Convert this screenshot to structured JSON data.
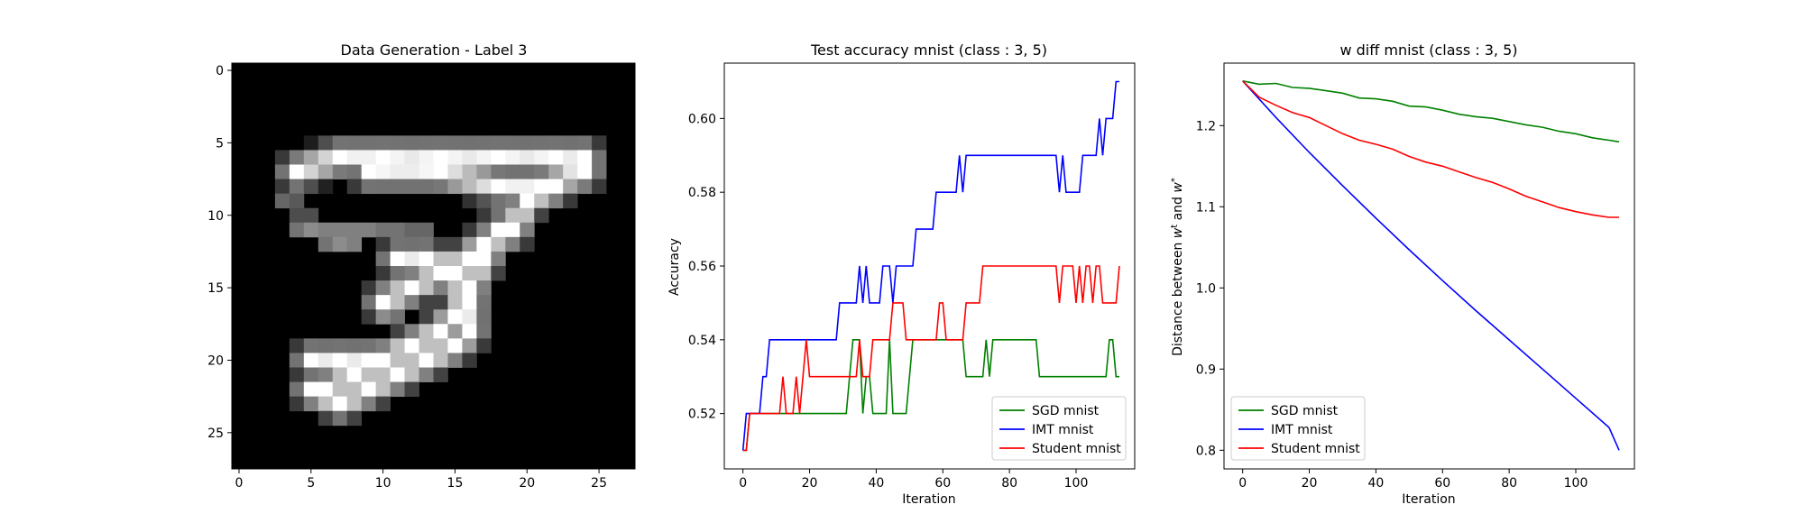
{
  "chart_data": [
    {
      "type": "heatmap",
      "title": "Data Generation - Label 3",
      "colormap": "gray",
      "background": "#000000",
      "xlim": [
        -0.5,
        27.5
      ],
      "ylim": [
        27.5,
        -0.5
      ],
      "x_ticks": [
        0,
        5,
        10,
        15,
        20,
        25
      ],
      "y_ticks": [
        0,
        5,
        10,
        15,
        20,
        25
      ],
      "pixels": [
        [
          3,
          9,
          12,
          0.4
        ],
        [
          4,
          9,
          12,
          0.35
        ],
        [
          4,
          9,
          13,
          0.25
        ],
        [
          4,
          10,
          14,
          0.25
        ],
        [
          4,
          10,
          15,
          0.3
        ],
        [
          5,
          10,
          15,
          0.3
        ],
        [
          5,
          10,
          16,
          0.2
        ],
        [
          4,
          11,
          7,
          0.3
        ],
        [
          4,
          11,
          8,
          0.45
        ],
        [
          5,
          11,
          8,
          0.55
        ],
        [
          5,
          11,
          9,
          0.5
        ],
        [
          6,
          11,
          9,
          0.5
        ],
        [
          7,
          11,
          10,
          0.5
        ],
        [
          8,
          11,
          11,
          0.5
        ],
        [
          9,
          11,
          12,
          0.5
        ],
        [
          10,
          11,
          13,
          0.45
        ],
        [
          11,
          11,
          14,
          0.45
        ],
        [
          12,
          11,
          15,
          0.4
        ],
        [
          13,
          11,
          16,
          0.4
        ],
        [
          8,
          12,
          21,
          0.5
        ],
        [
          8,
          12,
          22,
          0.4
        ],
        [
          7,
          12,
          23,
          0.5
        ],
        [
          7,
          12,
          24,
          0.55
        ],
        [
          6,
          12,
          25,
          0.45
        ],
        [
          10,
          17,
          22,
          0.55
        ],
        [
          11,
          17,
          23,
          0.45
        ]
      ],
      "strokes": [
        [
          [
            4,
            7
          ],
          [
            7,
            6
          ],
          [
            10,
            6
          ],
          [
            14,
            6
          ],
          [
            18,
            6
          ],
          [
            22,
            6
          ],
          [
            24,
            6
          ]
        ],
        [
          [
            9,
            7
          ],
          [
            14,
            7
          ],
          [
            18,
            8
          ],
          [
            21,
            8
          ],
          [
            24,
            7
          ]
        ],
        [
          [
            24,
            6
          ],
          [
            22,
            8
          ],
          [
            20,
            9
          ],
          [
            19,
            11
          ],
          [
            17,
            12
          ],
          [
            16,
            13
          ],
          [
            14,
            14
          ],
          [
            12,
            15
          ],
          [
            10,
            16
          ]
        ],
        [
          [
            18,
            11
          ],
          [
            17,
            13
          ],
          [
            16,
            15
          ],
          [
            15,
            17
          ],
          [
            14,
            18
          ],
          [
            12,
            19
          ],
          [
            10,
            20
          ],
          [
            8,
            21
          ],
          [
            6,
            22
          ],
          [
            5,
            22
          ]
        ],
        [
          [
            11,
            13
          ],
          [
            13,
            13
          ],
          [
            15,
            14
          ],
          [
            16,
            16
          ],
          [
            16,
            18
          ],
          [
            15,
            19
          ],
          [
            13,
            20
          ],
          [
            11,
            21
          ],
          [
            9,
            22
          ],
          [
            7,
            23
          ],
          [
            5,
            22
          ]
        ],
        [
          [
            5,
            20
          ],
          [
            7,
            20
          ],
          [
            9,
            20
          ],
          [
            11,
            21
          ]
        ]
      ]
    },
    {
      "type": "line",
      "title": "Test accuracy mnist (class : 3, 5)",
      "xlabel": "Iteration",
      "ylabel": "Accuracy",
      "xlim": [
        -5.6,
        117.6
      ],
      "ylim": [
        0.505,
        0.615
      ],
      "x_ticks": [
        0,
        20,
        40,
        60,
        80,
        100
      ],
      "y_ticks": [
        0.52,
        0.54,
        0.56,
        0.58,
        0.6
      ],
      "legend": "lower right",
      "series": [
        {
          "name": "SGD mnist",
          "color": "#008000",
          "points": [
            [
              0,
              0.51
            ],
            [
              1,
              0.51
            ],
            [
              2,
              0.52
            ],
            [
              31,
              0.52
            ],
            [
              32,
              0.53
            ],
            [
              33,
              0.54
            ],
            [
              35,
              0.54
            ],
            [
              36,
              0.52
            ],
            [
              37,
              0.53
            ],
            [
              38,
              0.53
            ],
            [
              39,
              0.52
            ],
            [
              43,
              0.52
            ],
            [
              44,
              0.54
            ],
            [
              45,
              0.52
            ],
            [
              49,
              0.52
            ],
            [
              50,
              0.53
            ],
            [
              51,
              0.54
            ],
            [
              66,
              0.54
            ],
            [
              67,
              0.53
            ],
            [
              72,
              0.53
            ],
            [
              73,
              0.54
            ],
            [
              74,
              0.53
            ],
            [
              75,
              0.54
            ],
            [
              88,
              0.54
            ],
            [
              89,
              0.53
            ],
            [
              109,
              0.53
            ],
            [
              110,
              0.54
            ],
            [
              111,
              0.54
            ],
            [
              112,
              0.53
            ],
            [
              113,
              0.53
            ]
          ]
        },
        {
          "name": "IMT mnist",
          "color": "#0000ff",
          "points": [
            [
              0,
              0.51
            ],
            [
              1,
              0.52
            ],
            [
              5,
              0.52
            ],
            [
              6,
              0.53
            ],
            [
              7,
              0.53
            ],
            [
              8,
              0.54
            ],
            [
              28,
              0.54
            ],
            [
              29,
              0.55
            ],
            [
              34,
              0.55
            ],
            [
              35,
              0.56
            ],
            [
              36,
              0.55
            ],
            [
              37,
              0.56
            ],
            [
              38,
              0.55
            ],
            [
              41,
              0.55
            ],
            [
              42,
              0.56
            ],
            [
              44,
              0.56
            ],
            [
              45,
              0.55
            ],
            [
              46,
              0.56
            ],
            [
              51,
              0.56
            ],
            [
              52,
              0.57
            ],
            [
              57,
              0.57
            ],
            [
              58,
              0.58
            ],
            [
              64,
              0.58
            ],
            [
              65,
              0.59
            ],
            [
              66,
              0.58
            ],
            [
              67,
              0.59
            ],
            [
              94,
              0.59
            ],
            [
              95,
              0.58
            ],
            [
              96,
              0.59
            ],
            [
              97,
              0.58
            ],
            [
              101,
              0.58
            ],
            [
              102,
              0.59
            ],
            [
              106,
              0.59
            ],
            [
              107,
              0.6
            ],
            [
              108,
              0.59
            ],
            [
              109,
              0.6
            ],
            [
              111,
              0.6
            ],
            [
              112,
              0.61
            ],
            [
              113,
              0.61
            ]
          ]
        },
        {
          "name": "Student mnist",
          "color": "#ff0000",
          "points": [
            [
              0,
              0.51
            ],
            [
              1,
              0.51
            ],
            [
              2,
              0.52
            ],
            [
              11,
              0.52
            ],
            [
              12,
              0.53
            ],
            [
              13,
              0.52
            ],
            [
              15,
              0.52
            ],
            [
              16,
              0.53
            ],
            [
              17,
              0.52
            ],
            [
              19,
              0.54
            ],
            [
              20,
              0.53
            ],
            [
              34,
              0.53
            ],
            [
              35,
              0.54
            ],
            [
              36,
              0.53
            ],
            [
              38,
              0.53
            ],
            [
              39,
              0.54
            ],
            [
              44,
              0.54
            ],
            [
              45,
              0.55
            ],
            [
              48,
              0.55
            ],
            [
              49,
              0.54
            ],
            [
              58,
              0.54
            ],
            [
              59,
              0.55
            ],
            [
              60,
              0.55
            ],
            [
              61,
              0.54
            ],
            [
              66,
              0.54
            ],
            [
              67,
              0.55
            ],
            [
              71,
              0.55
            ],
            [
              72,
              0.56
            ],
            [
              94,
              0.56
            ],
            [
              95,
              0.55
            ],
            [
              96,
              0.56
            ],
            [
              99,
              0.56
            ],
            [
              100,
              0.55
            ],
            [
              101,
              0.56
            ],
            [
              102,
              0.55
            ],
            [
              103,
              0.56
            ],
            [
              104,
              0.56
            ],
            [
              105,
              0.55
            ],
            [
              106,
              0.56
            ],
            [
              107,
              0.56
            ],
            [
              108,
              0.55
            ],
            [
              112,
              0.55
            ],
            [
              113,
              0.56
            ]
          ]
        }
      ]
    },
    {
      "type": "line",
      "title": "w diff mnist (class : 3, 5)",
      "xlabel": "Iteration",
      "ylabel_parts": [
        "Distance between ",
        "w",
        "t",
        " and ",
        "w",
        "*"
      ],
      "xlim": [
        -5.6,
        117.6
      ],
      "ylim": [
        0.777,
        1.277
      ],
      "x_ticks": [
        0,
        20,
        40,
        60,
        80,
        100
      ],
      "y_ticks": [
        0.8,
        0.9,
        1.0,
        1.1,
        1.2
      ],
      "legend": "lower left",
      "series": [
        {
          "name": "SGD mnist",
          "color": "#008000",
          "points": [
            [
              0,
              1.255
            ],
            [
              5,
              1.251
            ],
            [
              10,
              1.252
            ],
            [
              15,
              1.247
            ],
            [
              20,
              1.246
            ],
            [
              25,
              1.243
            ],
            [
              30,
              1.24
            ],
            [
              35,
              1.234
            ],
            [
              40,
              1.233
            ],
            [
              45,
              1.23
            ],
            [
              50,
              1.224
            ],
            [
              55,
              1.223
            ],
            [
              60,
              1.219
            ],
            [
              65,
              1.214
            ],
            [
              70,
              1.211
            ],
            [
              75,
              1.209
            ],
            [
              80,
              1.205
            ],
            [
              85,
              1.201
            ],
            [
              90,
              1.198
            ],
            [
              95,
              1.193
            ],
            [
              100,
              1.19
            ],
            [
              105,
              1.185
            ],
            [
              110,
              1.182
            ],
            [
              113,
              1.18
            ]
          ]
        },
        {
          "name": "IMT mnist",
          "color": "#0000ff",
          "points": [
            [
              0,
              1.255
            ],
            [
              10,
              1.21
            ],
            [
              20,
              1.167
            ],
            [
              30,
              1.126
            ],
            [
              40,
              1.086
            ],
            [
              50,
              1.047
            ],
            [
              60,
              1.009
            ],
            [
              70,
              0.972
            ],
            [
              80,
              0.936
            ],
            [
              90,
              0.9
            ],
            [
              100,
              0.864
            ],
            [
              110,
              0.828
            ],
            [
              113,
              0.8
            ]
          ]
        },
        {
          "name": "Student mnist",
          "color": "#ff0000",
          "points": [
            [
              0,
              1.255
            ],
            [
              5,
              1.235
            ],
            [
              10,
              1.225
            ],
            [
              15,
              1.216
            ],
            [
              20,
              1.21
            ],
            [
              25,
              1.2
            ],
            [
              30,
              1.19
            ],
            [
              35,
              1.182
            ],
            [
              40,
              1.177
            ],
            [
              45,
              1.171
            ],
            [
              50,
              1.162
            ],
            [
              55,
              1.155
            ],
            [
              60,
              1.15
            ],
            [
              65,
              1.143
            ],
            [
              70,
              1.136
            ],
            [
              75,
              1.13
            ],
            [
              80,
              1.122
            ],
            [
              85,
              1.113
            ],
            [
              90,
              1.106
            ],
            [
              95,
              1.099
            ],
            [
              100,
              1.094
            ],
            [
              105,
              1.09
            ],
            [
              110,
              1.087
            ],
            [
              113,
              1.087
            ]
          ]
        }
      ]
    }
  ]
}
